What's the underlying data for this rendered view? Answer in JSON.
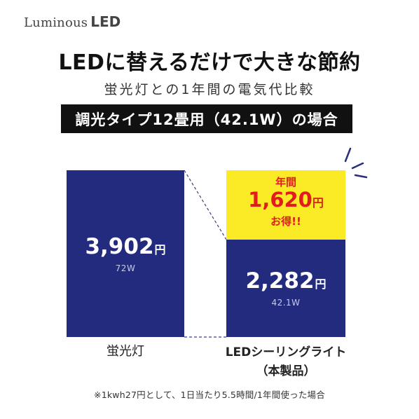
{
  "brand": {
    "script": "Luminous",
    "bold": "LED"
  },
  "headline": "LEDに替えるだけで大きな節約",
  "subtitle": "蛍光灯との1年間の電気代比較",
  "condition": "調光タイプ12畳用（42.1W）の場合",
  "savings": {
    "label_top": "年間",
    "amount": "1,620",
    "unit": "円",
    "label_bottom": "お得!!"
  },
  "colors": {
    "bar": "#222b7e",
    "savings_bg": "#fbeb26",
    "savings_text": "#e21b1b",
    "condition_bg": "#111111"
  },
  "chart_data": {
    "type": "bar",
    "categories": [
      "蛍光灯",
      "LEDシーリングライト（本製品）"
    ],
    "values": [
      3902,
      2282
    ],
    "series": [
      {
        "values": [
          3902,
          2282
        ]
      }
    ],
    "value_labels": [
      "3,902",
      "2,282"
    ],
    "value_unit": "円",
    "watts": [
      "72W",
      "42.1W"
    ],
    "difference": 1620,
    "title": "",
    "xlabel": "",
    "ylabel": ""
  },
  "categories": {
    "fluorescent": "蛍光灯",
    "led_line1": "LEDシーリングライト",
    "led_line2": "（本製品）"
  },
  "footnote": "※1kwh27円として、1日当たり5.5時間/1年間使った場合"
}
